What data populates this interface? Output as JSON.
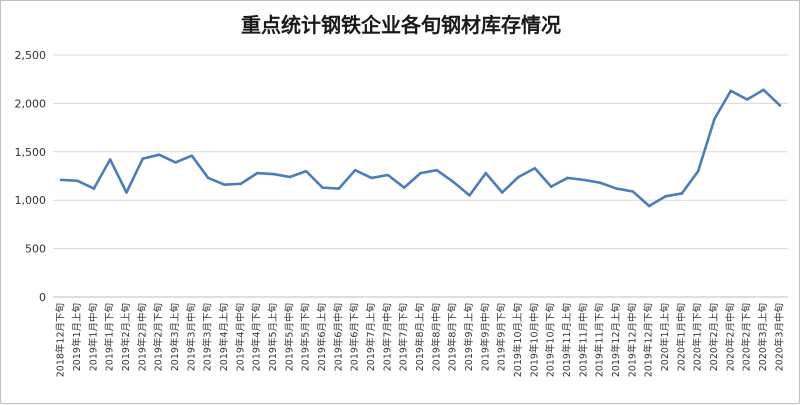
{
  "chart_data": {
    "type": "line",
    "title": "重点统计钢铁企业各旬钢材库存情况",
    "xlabel": "",
    "ylabel": "",
    "ylim": [
      0,
      2500
    ],
    "yticks": [
      "0",
      "500",
      "1,000",
      "1,500",
      "2,000",
      "2,500"
    ],
    "grid": true,
    "legend": "none",
    "line_color": "#4a7ebb",
    "categories": [
      "2018年12月下旬",
      "2019年1月上旬",
      "2019年1月中旬",
      "2019年1月下旬",
      "2019年2月上旬",
      "2019年2月中旬",
      "2019年2月下旬",
      "2019年3月上旬",
      "2019年3月中旬",
      "2019年3月下旬",
      "2019年4月上旬",
      "2019年4月中旬",
      "2019年4月下旬",
      "2019年5月上旬",
      "2019年5月中旬",
      "2019年5月下旬",
      "2019年6月上旬",
      "2019年6月中旬",
      "2019年6月下旬",
      "2019年7月上旬",
      "2019年7月中旬",
      "2019年7月下旬",
      "2019年8月上旬",
      "2019年8月中旬",
      "2019年8月下旬",
      "2019年9月上旬",
      "2019年9月中旬",
      "2019年9月下旬",
      "2019年10月上旬",
      "2019年10月中旬",
      "2019年10月下旬",
      "2019年11月上旬",
      "2019年11月中旬",
      "2019年11月下旬",
      "2019年12月上旬",
      "2019年12月中旬",
      "2019年12月下旬",
      "2020年1月上旬",
      "2020年1月中旬",
      "2020年1月下旬",
      "2020年2月上旬",
      "2020年2月中旬",
      "2020年2月下旬",
      "2020年3月上旬",
      "2020年3月中旬"
    ],
    "series": [
      {
        "values": [
          1210,
          1200,
          1120,
          1420,
          1080,
          1430,
          1470,
          1390,
          1460,
          1230,
          1160,
          1170,
          1280,
          1270,
          1240,
          1300,
          1130,
          1120,
          1310,
          1230,
          1260,
          1130,
          1280,
          1310,
          1190,
          1050,
          1280,
          1080,
          1240,
          1330,
          1140,
          1230,
          1210,
          1180,
          1120,
          1090,
          940,
          1040,
          1070,
          1300,
          1840,
          2130,
          2040,
          2140,
          1980
        ]
      }
    ]
  }
}
